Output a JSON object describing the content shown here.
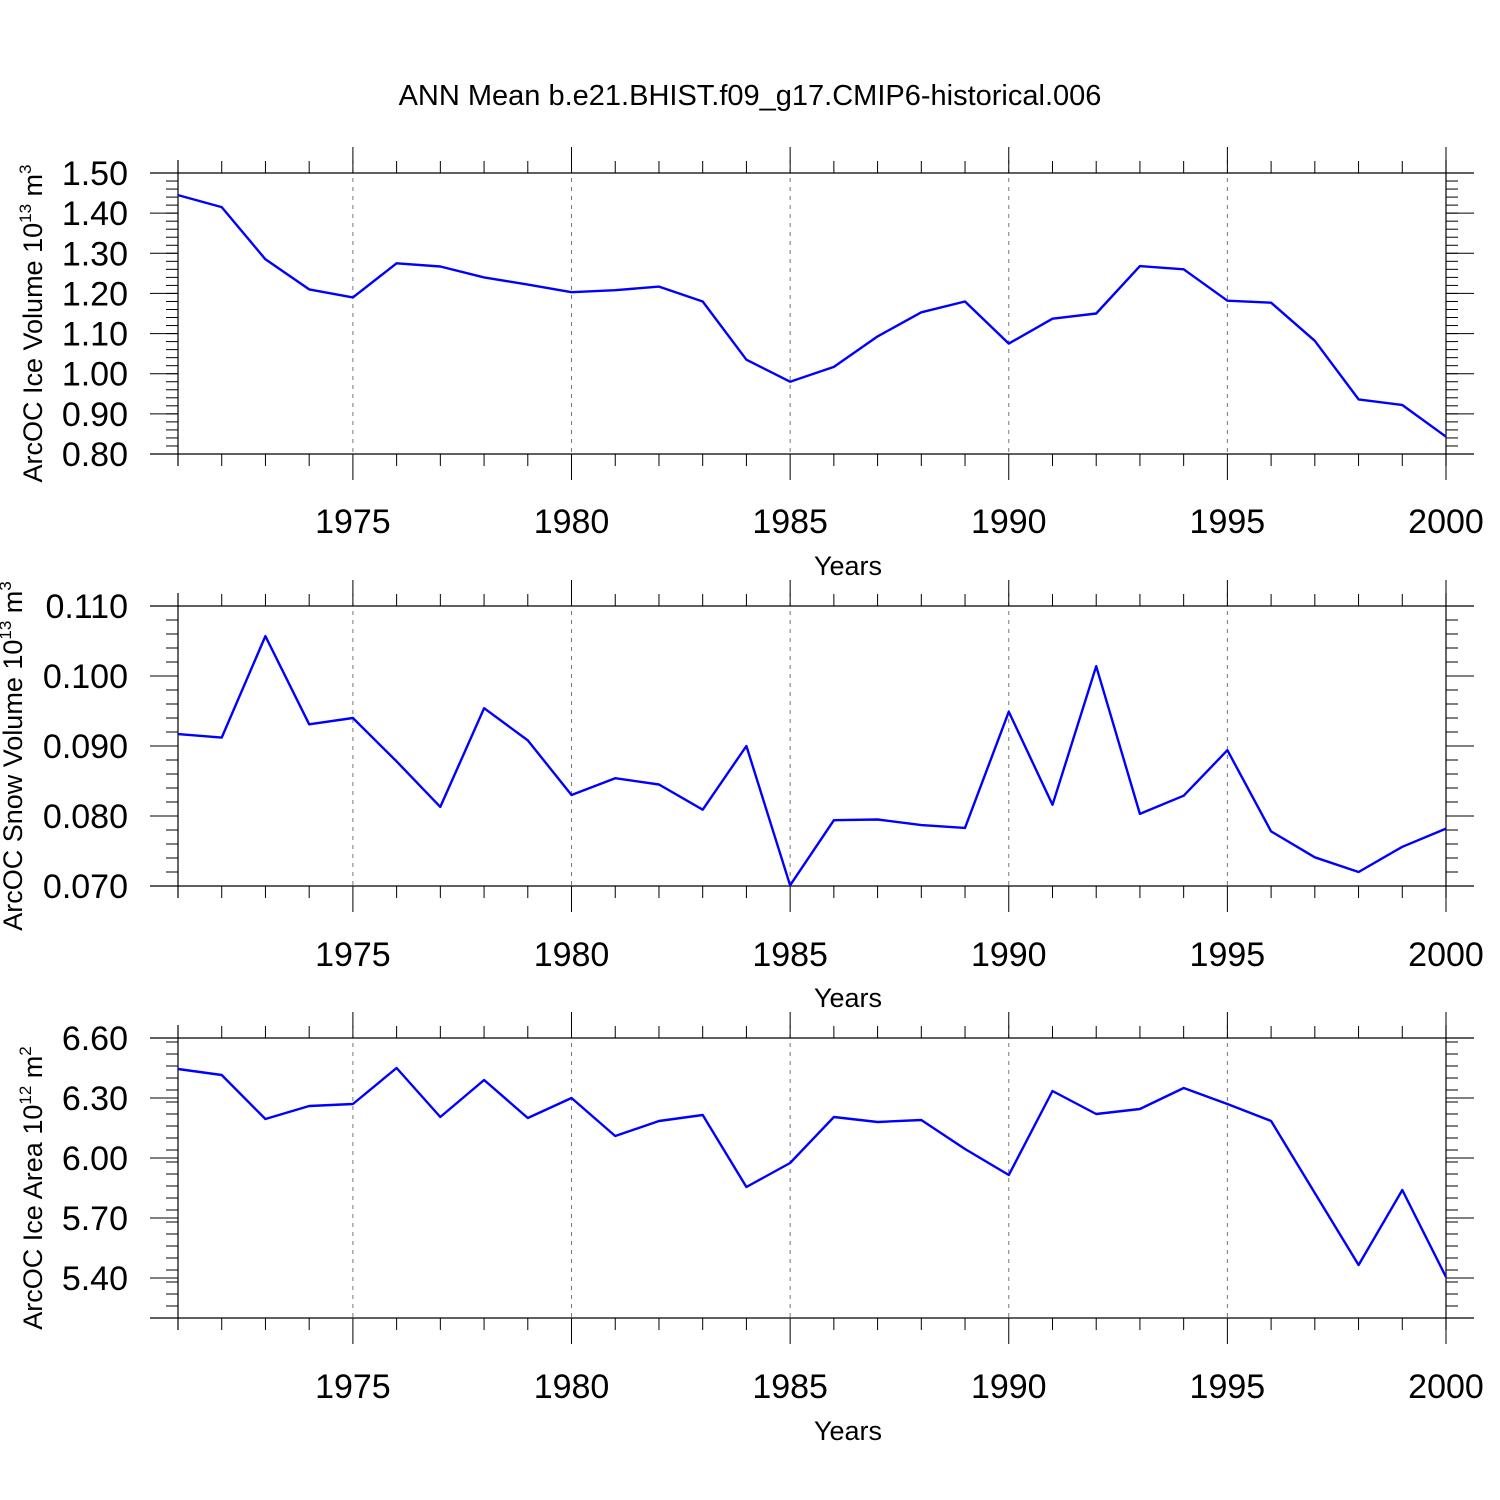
{
  "title": "ANN Mean b.e21.BHIST.f09_g17.CMIP6-historical.006",
  "colors": {
    "series": "#0000ff",
    "grid": "#777777"
  },
  "chart_data": [
    {
      "type": "line",
      "id": "ice-volume",
      "ylabel_main": "ArcOC Ice Volume 10",
      "ylabel_exp": "13",
      "ylabel_unit": " m",
      "ylabel_unit_exp": "3",
      "xlabel": "Years",
      "xlim": [
        1971,
        2000
      ],
      "ylim": [
        0.8,
        1.5
      ],
      "yticks": [
        0.8,
        0.9,
        1.0,
        1.1,
        1.2,
        1.3,
        1.4,
        1.5
      ],
      "ytick_labels": [
        "0.80",
        "0.90",
        "1.00",
        "1.10",
        "1.20",
        "1.30",
        "1.40",
        "1.50"
      ],
      "xticks": [
        1975,
        1980,
        1985,
        1990,
        1995,
        2000
      ],
      "xtick_labels": [
        "1975",
        "1980",
        "1985",
        "1990",
        "1995",
        "2000"
      ],
      "x": [
        1971,
        1972,
        1973,
        1974,
        1975,
        1976,
        1977,
        1978,
        1979,
        1980,
        1981,
        1982,
        1983,
        1984,
        1985,
        1986,
        1987,
        1988,
        1989,
        1990,
        1991,
        1992,
        1993,
        1994,
        1995,
        1996,
        1997,
        1998,
        1999,
        2000
      ],
      "values": [
        1.445,
        1.415,
        1.285,
        1.21,
        1.19,
        1.275,
        1.267,
        1.24,
        1.222,
        1.203,
        1.208,
        1.217,
        1.18,
        1.035,
        0.98,
        1.017,
        1.093,
        1.153,
        1.18,
        1.075,
        1.137,
        1.15,
        1.268,
        1.26,
        1.182,
        1.177,
        1.082,
        0.936,
        0.922,
        0.843
      ]
    },
    {
      "type": "line",
      "id": "snow-volume",
      "ylabel_main": "ArcOC Snow Volume 10",
      "ylabel_exp": "13",
      "ylabel_unit": " m",
      "ylabel_unit_exp": "3",
      "xlabel": "Years",
      "xlim": [
        1971,
        2000
      ],
      "ylim": [
        0.07,
        0.11
      ],
      "yticks": [
        0.07,
        0.08,
        0.09,
        0.1,
        0.11
      ],
      "ytick_labels": [
        "0.070",
        "0.080",
        "0.090",
        "0.100",
        "0.110"
      ],
      "xticks": [
        1975,
        1980,
        1985,
        1990,
        1995,
        2000
      ],
      "xtick_labels": [
        "1975",
        "1980",
        "1985",
        "1990",
        "1995",
        "2000"
      ],
      "x": [
        1971,
        1972,
        1973,
        1974,
        1975,
        1976,
        1977,
        1978,
        1979,
        1980,
        1981,
        1982,
        1983,
        1984,
        1985,
        1986,
        1987,
        1988,
        1989,
        1990,
        1991,
        1992,
        1993,
        1994,
        1995,
        1996,
        1997,
        1998,
        1999,
        2000
      ],
      "values": [
        0.0917,
        0.0912,
        0.1057,
        0.0931,
        0.094,
        0.0878,
        0.0813,
        0.0954,
        0.0908,
        0.083,
        0.0854,
        0.0845,
        0.0809,
        0.09,
        0.0701,
        0.0794,
        0.0795,
        0.0787,
        0.0783,
        0.0949,
        0.0816,
        0.1014,
        0.0803,
        0.0829,
        0.0894,
        0.0778,
        0.0741,
        0.072,
        0.0756,
        0.0782
      ]
    },
    {
      "type": "line",
      "id": "ice-area",
      "ylabel_main": "ArcOC Ice Area 10",
      "ylabel_exp": "12",
      "ylabel_unit": " m",
      "ylabel_unit_exp": "2",
      "xlabel": "Years",
      "xlim": [
        1971,
        2000
      ],
      "ylim": [
        5.2,
        6.6
      ],
      "yticks": [
        5.4,
        5.7,
        6.0,
        6.3,
        6.6
      ],
      "ytick_labels": [
        "5.40",
        "5.70",
        "6.00",
        "6.30",
        "6.60"
      ],
      "xticks": [
        1975,
        1980,
        1985,
        1990,
        1995,
        2000
      ],
      "xtick_labels": [
        "1975",
        "1980",
        "1985",
        "1990",
        "1995",
        "2000"
      ],
      "x": [
        1971,
        1972,
        1973,
        1974,
        1975,
        1976,
        1977,
        1978,
        1979,
        1980,
        1981,
        1982,
        1983,
        1984,
        1985,
        1986,
        1987,
        1988,
        1989,
        1990,
        1991,
        1992,
        1993,
        1994,
        1995,
        1996,
        1997,
        1998,
        1999,
        2000
      ],
      "values": [
        6.445,
        6.415,
        6.195,
        6.26,
        6.27,
        6.45,
        6.205,
        6.39,
        6.2,
        6.3,
        6.11,
        6.185,
        6.215,
        5.855,
        5.975,
        6.205,
        6.18,
        6.19,
        6.045,
        5.915,
        6.335,
        6.22,
        6.245,
        6.35,
        6.27,
        6.185,
        5.825,
        5.465,
        5.84,
        5.405
      ]
    }
  ]
}
